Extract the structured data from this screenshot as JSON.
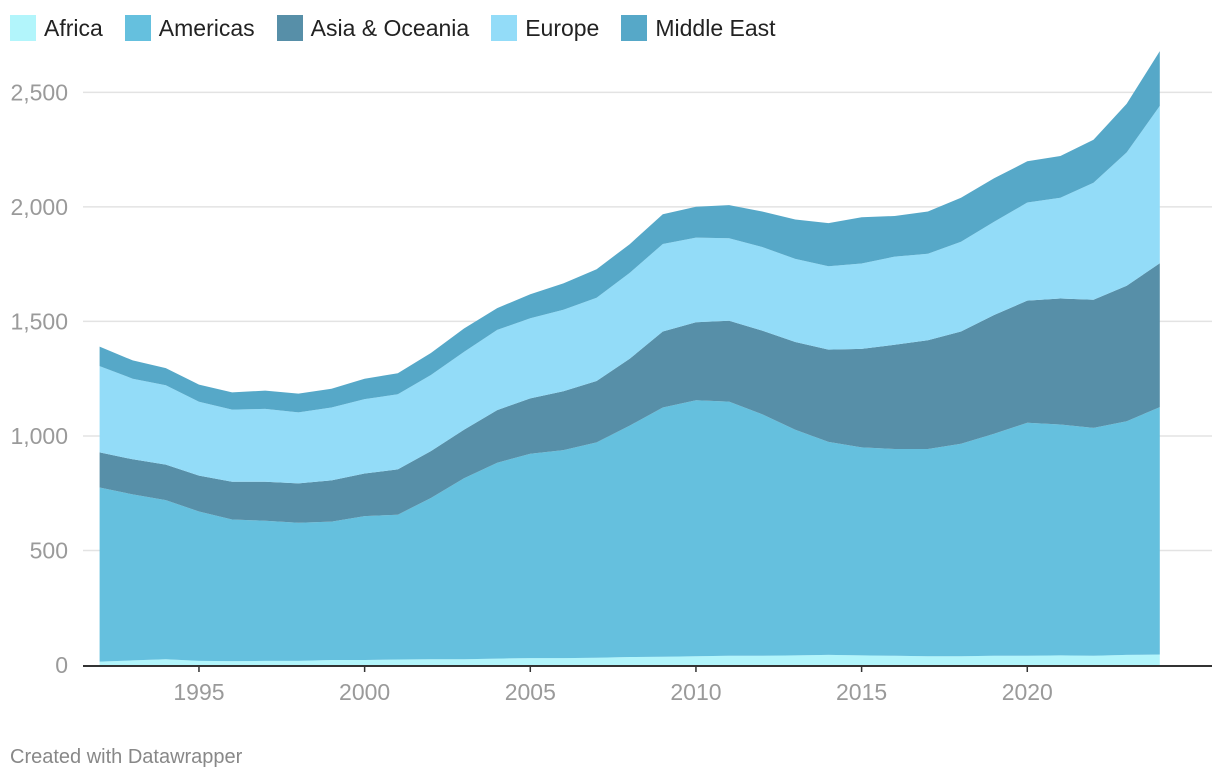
{
  "chart_data": {
    "type": "area",
    "stacked": true,
    "x": [
      1992,
      1993,
      1994,
      1995,
      1996,
      1997,
      1998,
      1999,
      2000,
      2001,
      2002,
      2003,
      2004,
      2005,
      2006,
      2007,
      2008,
      2009,
      2010,
      2011,
      2012,
      2013,
      2014,
      2015,
      2016,
      2017,
      2018,
      2019,
      2020,
      2021,
      2022,
      2023,
      2024
    ],
    "series": [
      {
        "name": "Africa",
        "color": "#b2f5fb",
        "values": [
          15,
          20,
          25,
          18,
          17,
          18,
          18,
          22,
          22,
          24,
          25,
          25,
          28,
          30,
          30,
          32,
          35,
          36,
          38,
          40,
          40,
          42,
          44,
          42,
          40,
          38,
          38,
          40,
          40,
          42,
          40,
          44,
          46
        ]
      },
      {
        "name": "Americas",
        "color": "#65c0de",
        "values": [
          760,
          725,
          695,
          652,
          618,
          612,
          603,
          604,
          628,
          632,
          704,
          790,
          855,
          892,
          908,
          940,
          1010,
          1088,
          1118,
          1110,
          1055,
          985,
          930,
          908,
          903,
          905,
          928,
          970,
          1018,
          1008,
          995,
          1020,
          1080
        ]
      },
      {
        "name": "Asia & Oceania",
        "color": "#578fa8",
        "values": [
          153,
          153,
          155,
          157,
          165,
          170,
          172,
          180,
          186,
          198,
          205,
          212,
          230,
          242,
          257,
          268,
          292,
          332,
          340,
          353,
          365,
          383,
          403,
          430,
          455,
          475,
          490,
          518,
          533,
          550,
          560,
          592,
          628
        ]
      },
      {
        "name": "Europe",
        "color": "#93dcf8",
        "values": [
          377,
          352,
          346,
          322,
          315,
          318,
          310,
          318,
          325,
          328,
          332,
          340,
          350,
          350,
          356,
          363,
          375,
          382,
          370,
          360,
          365,
          363,
          364,
          373,
          385,
          377,
          392,
          407,
          428,
          440,
          510,
          582,
          687
        ]
      },
      {
        "name": "Middle East",
        "color": "#56a8c8",
        "values": [
          85,
          80,
          75,
          75,
          75,
          80,
          82,
          82,
          89,
          92,
          96,
          102,
          95,
          105,
          115,
          125,
          125,
          130,
          135,
          145,
          155,
          172,
          188,
          202,
          177,
          185,
          192,
          190,
          180,
          182,
          188,
          212,
          239
        ]
      }
    ],
    "title": "",
    "xlabel": "",
    "ylabel": "",
    "ylim": [
      0,
      2650
    ],
    "xlim": [
      1991.5,
      2024.7
    ],
    "y_ticks": [
      "0",
      "500",
      "1,000",
      "1,500",
      "2,000",
      "2,500"
    ],
    "y_tick_values": [
      0,
      500,
      1000,
      1500,
      2000,
      2500
    ],
    "x_ticks": [
      "1995",
      "2000",
      "2005",
      "2010",
      "2015",
      "2020"
    ],
    "x_tick_values": [
      1995,
      2000,
      2005,
      2010,
      2015,
      2020
    ],
    "grid": true,
    "legend": "top-left"
  },
  "footer": {
    "credit": "Created with Datawrapper"
  }
}
